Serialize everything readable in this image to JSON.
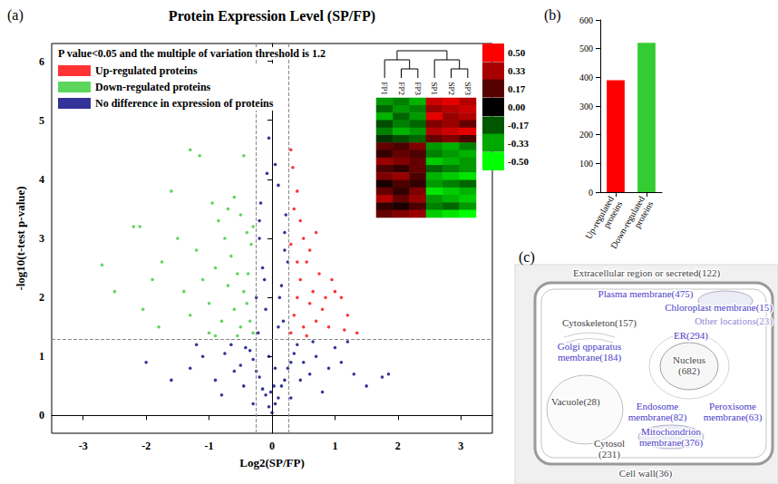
{
  "chart_data": [
    {
      "type": "scatter",
      "panel": "(a)",
      "title": "Protein Expression Level (SP/FP)",
      "x_label": "Log2(SP/FP)",
      "y_label": "-log10(t-test p-value)",
      "annotation": "P value<0.05 and the multiple of variation threshold is 1.2",
      "xlim": [
        -3.5,
        3.5
      ],
      "xticks": [
        -3,
        -2,
        -1,
        0,
        1,
        2,
        3
      ],
      "ylim": [
        -0.3,
        6.3
      ],
      "yticks": [
        0,
        1,
        2,
        3,
        4,
        5,
        6
      ],
      "grid": false,
      "legend": "top-left",
      "thresholds": {
        "x": [
          -0.263,
          0.263
        ],
        "y": 1.301
      },
      "series": [
        {
          "name": "Up-regulated proteins",
          "color": "#ff0000",
          "values": [
            [
              0.3,
              1.4
            ],
            [
              0.35,
              1.7
            ],
            [
              0.4,
              2.0
            ],
            [
              0.45,
              2.3
            ],
            [
              0.5,
              1.5
            ],
            [
              0.55,
              2.6
            ],
            [
              0.6,
              1.9
            ],
            [
              0.65,
              2.1
            ],
            [
              0.7,
              1.6
            ],
            [
              0.75,
              2.4
            ],
            [
              0.8,
              1.8
            ],
            [
              0.85,
              2.0
            ],
            [
              0.9,
              1.5
            ],
            [
              0.3,
              2.9
            ],
            [
              0.35,
              3.5
            ],
            [
              0.4,
              3.8
            ],
            [
              0.3,
              4.5
            ],
            [
              0.33,
              4.2
            ],
            [
              0.5,
              3.0
            ],
            [
              0.45,
              3.3
            ],
            [
              0.6,
              2.8
            ],
            [
              1.0,
              2.1
            ],
            [
              1.1,
              2.0
            ],
            [
              1.2,
              1.7
            ],
            [
              1.15,
              1.45
            ],
            [
              0.95,
              2.3
            ],
            [
              0.7,
              3.1
            ],
            [
              0.4,
              2.6
            ],
            [
              1.35,
              1.4
            ],
            [
              0.55,
              1.35
            ]
          ]
        },
        {
          "name": "Down-regulated proteins",
          "color": "#33cc33",
          "values": [
            [
              -0.3,
              1.4
            ],
            [
              -0.35,
              1.6
            ],
            [
              -0.4,
              1.9
            ],
            [
              -0.45,
              2.1
            ],
            [
              -0.5,
              1.5
            ],
            [
              -0.55,
              2.4
            ],
            [
              -0.6,
              1.8
            ],
            [
              -0.65,
              2.7
            ],
            [
              -0.7,
              2.2
            ],
            [
              -0.75,
              3.0
            ],
            [
              -0.8,
              1.6
            ],
            [
              -0.85,
              3.3
            ],
            [
              -0.9,
              2.5
            ],
            [
              -0.95,
              3.6
            ],
            [
              -0.4,
              3.1
            ],
            [
              -0.5,
              3.4
            ],
            [
              -0.6,
              3.7
            ],
            [
              -0.7,
              3.5
            ],
            [
              -1.0,
              1.9
            ],
            [
              -1.1,
              2.3
            ],
            [
              -1.2,
              2.8
            ],
            [
              -1.3,
              1.7
            ],
            [
              -1.4,
              2.1
            ],
            [
              -1.5,
              3.0
            ],
            [
              -1.6,
              3.8
            ],
            [
              -1.3,
              4.5
            ],
            [
              -1.15,
              4.4
            ],
            [
              -0.45,
              4.4
            ],
            [
              -0.33,
              2.9
            ],
            [
              -0.38,
              2.4
            ],
            [
              -1.8,
              1.5
            ],
            [
              -1.9,
              2.3
            ],
            [
              -2.1,
              3.2
            ],
            [
              -2.2,
              3.2
            ],
            [
              -2.05,
              1.8
            ],
            [
              -2.5,
              2.1
            ],
            [
              -2.7,
              2.55
            ],
            [
              -1.75,
              2.6
            ],
            [
              -0.55,
              1.35
            ],
            [
              -0.3,
              3.2
            ],
            [
              -1.0,
              1.4
            ],
            [
              -0.9,
              1.35
            ]
          ]
        },
        {
          "name": "No difference in expression of proteins",
          "color": "#000080",
          "values": [
            [
              0,
              0.05
            ],
            [
              0.05,
              0.2
            ],
            [
              -0.05,
              0.15
            ],
            [
              0.1,
              0.3
            ],
            [
              -0.1,
              0.35
            ],
            [
              0.15,
              0.5
            ],
            [
              -0.15,
              0.45
            ],
            [
              0.2,
              0.6
            ],
            [
              -0.2,
              0.65
            ],
            [
              0.25,
              0.8
            ],
            [
              -0.25,
              0.75
            ],
            [
              0.3,
              0.9
            ],
            [
              -0.3,
              0.95
            ],
            [
              0.35,
              1.05
            ],
            [
              -0.35,
              1.1
            ],
            [
              0.4,
              1.2
            ],
            [
              -0.42,
              1.15
            ],
            [
              0.5,
              0.9
            ],
            [
              -0.5,
              0.85
            ],
            [
              0.6,
              0.7
            ],
            [
              -0.6,
              0.75
            ],
            [
              0.7,
              1.0
            ],
            [
              -0.75,
              1.05
            ],
            [
              0.9,
              0.8
            ],
            [
              -0.9,
              0.6
            ],
            [
              1.1,
              0.9
            ],
            [
              -1.1,
              1.0
            ],
            [
              1.3,
              0.7
            ],
            [
              -1.3,
              0.8
            ],
            [
              1.5,
              0.5
            ],
            [
              -1.6,
              0.6
            ],
            [
              1.75,
              0.65
            ],
            [
              1.85,
              0.7
            ],
            [
              -2.0,
              0.9
            ],
            [
              0.8,
              0.4
            ],
            [
              -0.8,
              0.35
            ],
            [
              0.05,
              0.8
            ],
            [
              -0.05,
              1.0
            ],
            [
              0.1,
              1.5
            ],
            [
              -0.1,
              1.8
            ],
            [
              0.15,
              2.2
            ],
            [
              -0.15,
              2.5
            ],
            [
              0.2,
              2.8
            ],
            [
              -0.2,
              3.0
            ],
            [
              0.22,
              3.4
            ],
            [
              -0.18,
              3.6
            ],
            [
              0.1,
              3.9
            ],
            [
              -0.08,
              4.1
            ],
            [
              -0.05,
              4.7
            ],
            [
              0.05,
              4.25
            ],
            [
              0.18,
              1.6
            ],
            [
              -0.22,
              1.4
            ],
            [
              0.12,
              2.0
            ],
            [
              -0.12,
              2.3
            ],
            [
              0.25,
              2.6
            ],
            [
              -0.25,
              2.0
            ],
            [
              0.2,
              3.1
            ],
            [
              -0.2,
              3.3
            ],
            [
              0.03,
              0.5
            ],
            [
              -0.02,
              0.4
            ],
            [
              0.3,
              0.3
            ],
            [
              -0.3,
              0.2
            ],
            [
              0.45,
              0.6
            ],
            [
              -0.45,
              0.5
            ],
            [
              1.0,
              1.15
            ],
            [
              -1.2,
              1.2
            ],
            [
              1.2,
              1.25
            ],
            [
              0.65,
              1.25
            ],
            [
              -0.65,
              1.2
            ]
          ]
        }
      ],
      "heatmap": {
        "columns": [
          "FP1",
          "FP2",
          "FP3",
          "SP1",
          "SP2",
          "SP3"
        ],
        "rows": [
          [
            -0.3,
            -0.25,
            -0.35,
            0.4,
            0.45,
            0.35
          ],
          [
            -0.2,
            -0.3,
            -0.25,
            0.3,
            0.35,
            0.4
          ],
          [
            -0.35,
            -0.2,
            -0.3,
            0.45,
            0.3,
            0.35
          ],
          [
            -0.15,
            -0.25,
            -0.2,
            0.25,
            0.3,
            0.2
          ],
          [
            -0.25,
            -0.35,
            -0.3,
            0.35,
            0.4,
            0.45
          ],
          [
            -0.1,
            -0.15,
            -0.2,
            0.2,
            0.25,
            0.15
          ],
          [
            0.2,
            0.15,
            0.25,
            -0.3,
            -0.35,
            -0.25
          ],
          [
            0.1,
            0.2,
            0.15,
            -0.25,
            -0.3,
            -0.35
          ],
          [
            0.3,
            0.25,
            0.2,
            -0.4,
            -0.35,
            -0.3
          ],
          [
            0.15,
            0.1,
            0.2,
            -0.2,
            -0.25,
            -0.3
          ],
          [
            0.25,
            0.3,
            0.15,
            -0.35,
            -0.4,
            -0.45
          ],
          [
            0.05,
            0.15,
            0.1,
            -0.3,
            -0.25,
            -0.2
          ],
          [
            0.2,
            0.1,
            0.25,
            -0.45,
            -0.4,
            -0.35
          ],
          [
            0.35,
            0.2,
            0.3,
            -0.3,
            -0.35,
            -0.4
          ],
          [
            0.1,
            0.05,
            0.15,
            -0.25,
            -0.2,
            -0.3
          ],
          [
            0.2,
            0.25,
            0.3,
            -0.4,
            -0.45,
            -0.5
          ]
        ],
        "colorbar": {
          "range": [
            -0.5,
            0.5
          ],
          "colors": [
            "#00ff00",
            "#000000",
            "#ff0000"
          ],
          "ticks": [
            {
              "value": 0.5,
              "label": "0.50"
            },
            {
              "value": 0.33,
              "label": "0.33"
            },
            {
              "value": 0.17,
              "label": "0.17"
            },
            {
              "value": 0,
              "label": "0.00"
            },
            {
              "value": -0.17,
              "label": "-0.17"
            },
            {
              "value": -0.33,
              "label": "-0.33"
            },
            {
              "value": -0.5,
              "label": "-0.50"
            }
          ]
        }
      }
    },
    {
      "type": "bar",
      "panel": "(b)",
      "categories": [
        "Up-regulated proteins",
        "Down-regulated proteins"
      ],
      "values": [
        390,
        520
      ],
      "colors": [
        "#ff0000",
        "#33cc33"
      ],
      "ylim": [
        0,
        600
      ],
      "yticks": [
        0,
        100,
        200,
        300,
        400,
        500,
        600
      ],
      "grid": false
    }
  ],
  "diagram": {
    "panel": "(c)",
    "locations": [
      {
        "text": "Extracellular region or secreted(122)",
        "color": "#444444"
      },
      {
        "text": "Plasma membrane(475)",
        "color": "#4b3cc9"
      },
      {
        "text": "Chloroplast membrane(15)",
        "color": "#4b3cc9"
      },
      {
        "text": "Other locations(23)",
        "color": "#8f88d8"
      },
      {
        "text": "Cytoskeleton(157)",
        "color": "#444444"
      },
      {
        "text": "Golgi qpparatus membrane(184)",
        "color": "#4b3cc9"
      },
      {
        "text": "ER(294)",
        "color": "#4b3cc9"
      },
      {
        "text": "Nucleus (682)",
        "color": "#444444"
      },
      {
        "text": "Vacuole(28)",
        "color": "#444444"
      },
      {
        "text": "Endosome membrane(82)",
        "color": "#4b3cc9"
      },
      {
        "text": "Peroxisome membrane(63)",
        "color": "#4b3cc9"
      },
      {
        "text": "Mitochondrion membrane(376)",
        "color": "#4b3cc9"
      },
      {
        "text": "Cytosol (231)",
        "color": "#444444"
      },
      {
        "text": "Cell wall(36)",
        "color": "#444444"
      }
    ]
  }
}
